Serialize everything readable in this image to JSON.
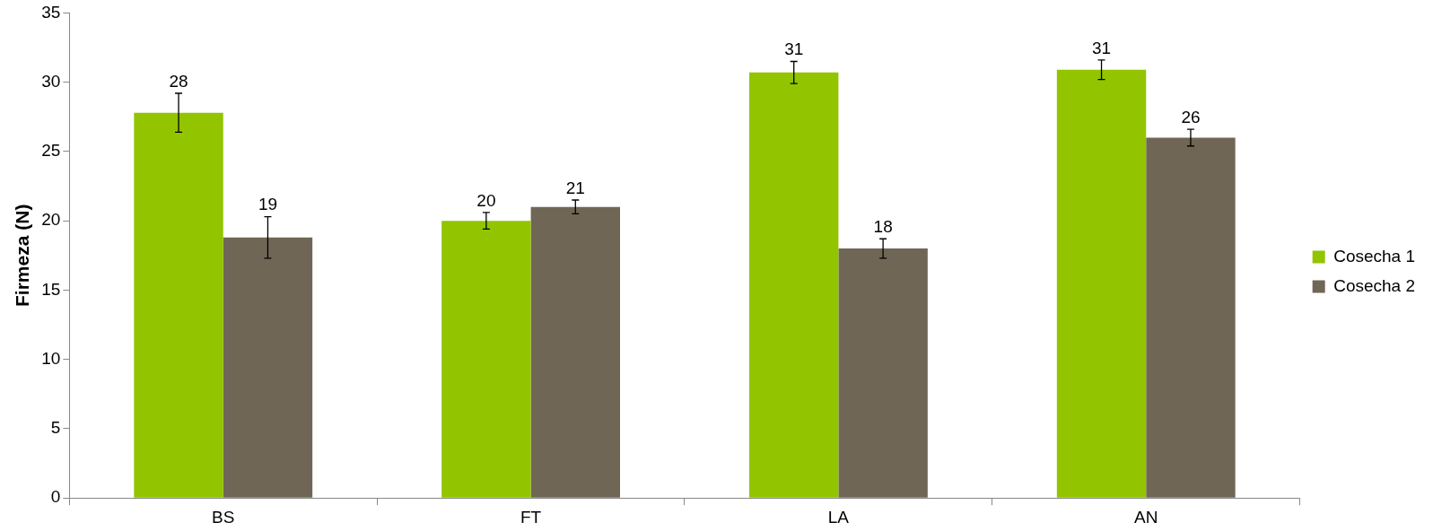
{
  "chart_data": {
    "type": "bar",
    "ylabel": "Firmeza (N)",
    "categories": [
      "BS",
      "FT",
      "LA",
      "AN"
    ],
    "series": [
      {
        "name": "Cosecha 1",
        "color": "#92c400",
        "values": [
          27.8,
          20,
          30.7,
          30.9
        ],
        "errors": [
          1.4,
          0.6,
          0.8,
          0.7
        ],
        "value_labels": [
          "28",
          "20",
          "31",
          "31"
        ]
      },
      {
        "name": "Cosecha 2",
        "color": "#706656",
        "values": [
          18.8,
          21,
          18,
          26
        ],
        "errors": [
          1.5,
          0.5,
          0.7,
          0.6
        ],
        "value_labels": [
          "19",
          "21",
          "18",
          "26"
        ]
      }
    ],
    "ylim": [
      0,
      35
    ],
    "yticks": [
      0,
      5,
      10,
      15,
      20,
      25,
      30,
      35
    ],
    "grid": false,
    "legend": "right"
  }
}
